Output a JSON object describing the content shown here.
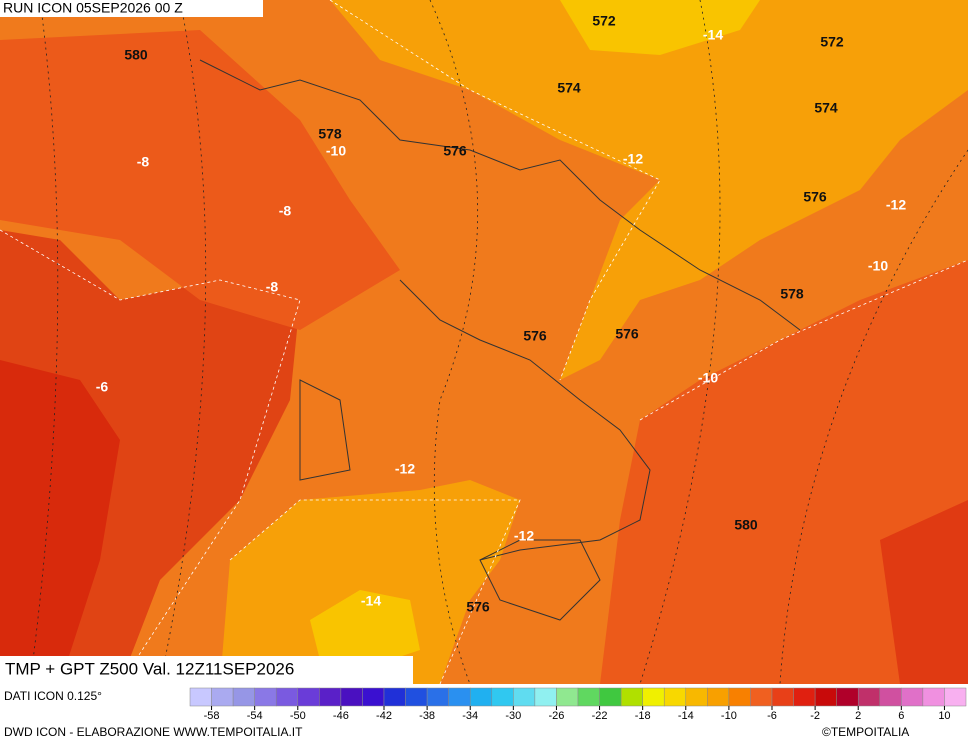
{
  "header": {
    "run": "RUN ICON 05SEP2026 00 Z",
    "title": "TMP + GPT Z500 Val. 12Z11SEP2026"
  },
  "map": {
    "contour_labels": [
      580,
      572,
      -14,
      572,
      574,
      574,
      578,
      -10,
      576,
      -12,
      -8,
      -8,
      576,
      -12,
      -10,
      -8,
      578,
      576,
      576,
      -10,
      -6,
      -12,
      580,
      -12,
      -14,
      576
    ]
  },
  "colorbar": {
    "labels": [
      -58,
      -54,
      -50,
      -46,
      -42,
      -38,
      -34,
      -30,
      -26,
      -22,
      -18,
      -14,
      -10,
      -6,
      -2,
      2,
      6,
      10
    ],
    "colors": [
      "#c8c8ff",
      "#aaaaf0",
      "#9696e6",
      "#8a78e6",
      "#7a5ae0",
      "#6a3cd8",
      "#5a20c8",
      "#4a10c0",
      "#3a10d0",
      "#2030d8",
      "#2050e0",
      "#2a70e8",
      "#2a90f0",
      "#20b0f0",
      "#30c8f0",
      "#60dcf0",
      "#90f0f0",
      "#90e890",
      "#60d860",
      "#40c840",
      "#b0e000",
      "#f0f000",
      "#f8d800",
      "#f8b800",
      "#f8a000",
      "#f88000",
      "#f06020",
      "#e84018",
      "#e02010",
      "#c80a0a",
      "#b0002a",
      "#c0306a",
      "#d050a0",
      "#e070c8",
      "#f090e0",
      "#f8b0f0"
    ]
  },
  "footer": {
    "source": "DATI ICON 0.125°",
    "credit": "DWD ICON - ELABORAZIONE WWW.TEMPOITALIA.IT",
    "copyright": "©TEMPOITALIA"
  }
}
